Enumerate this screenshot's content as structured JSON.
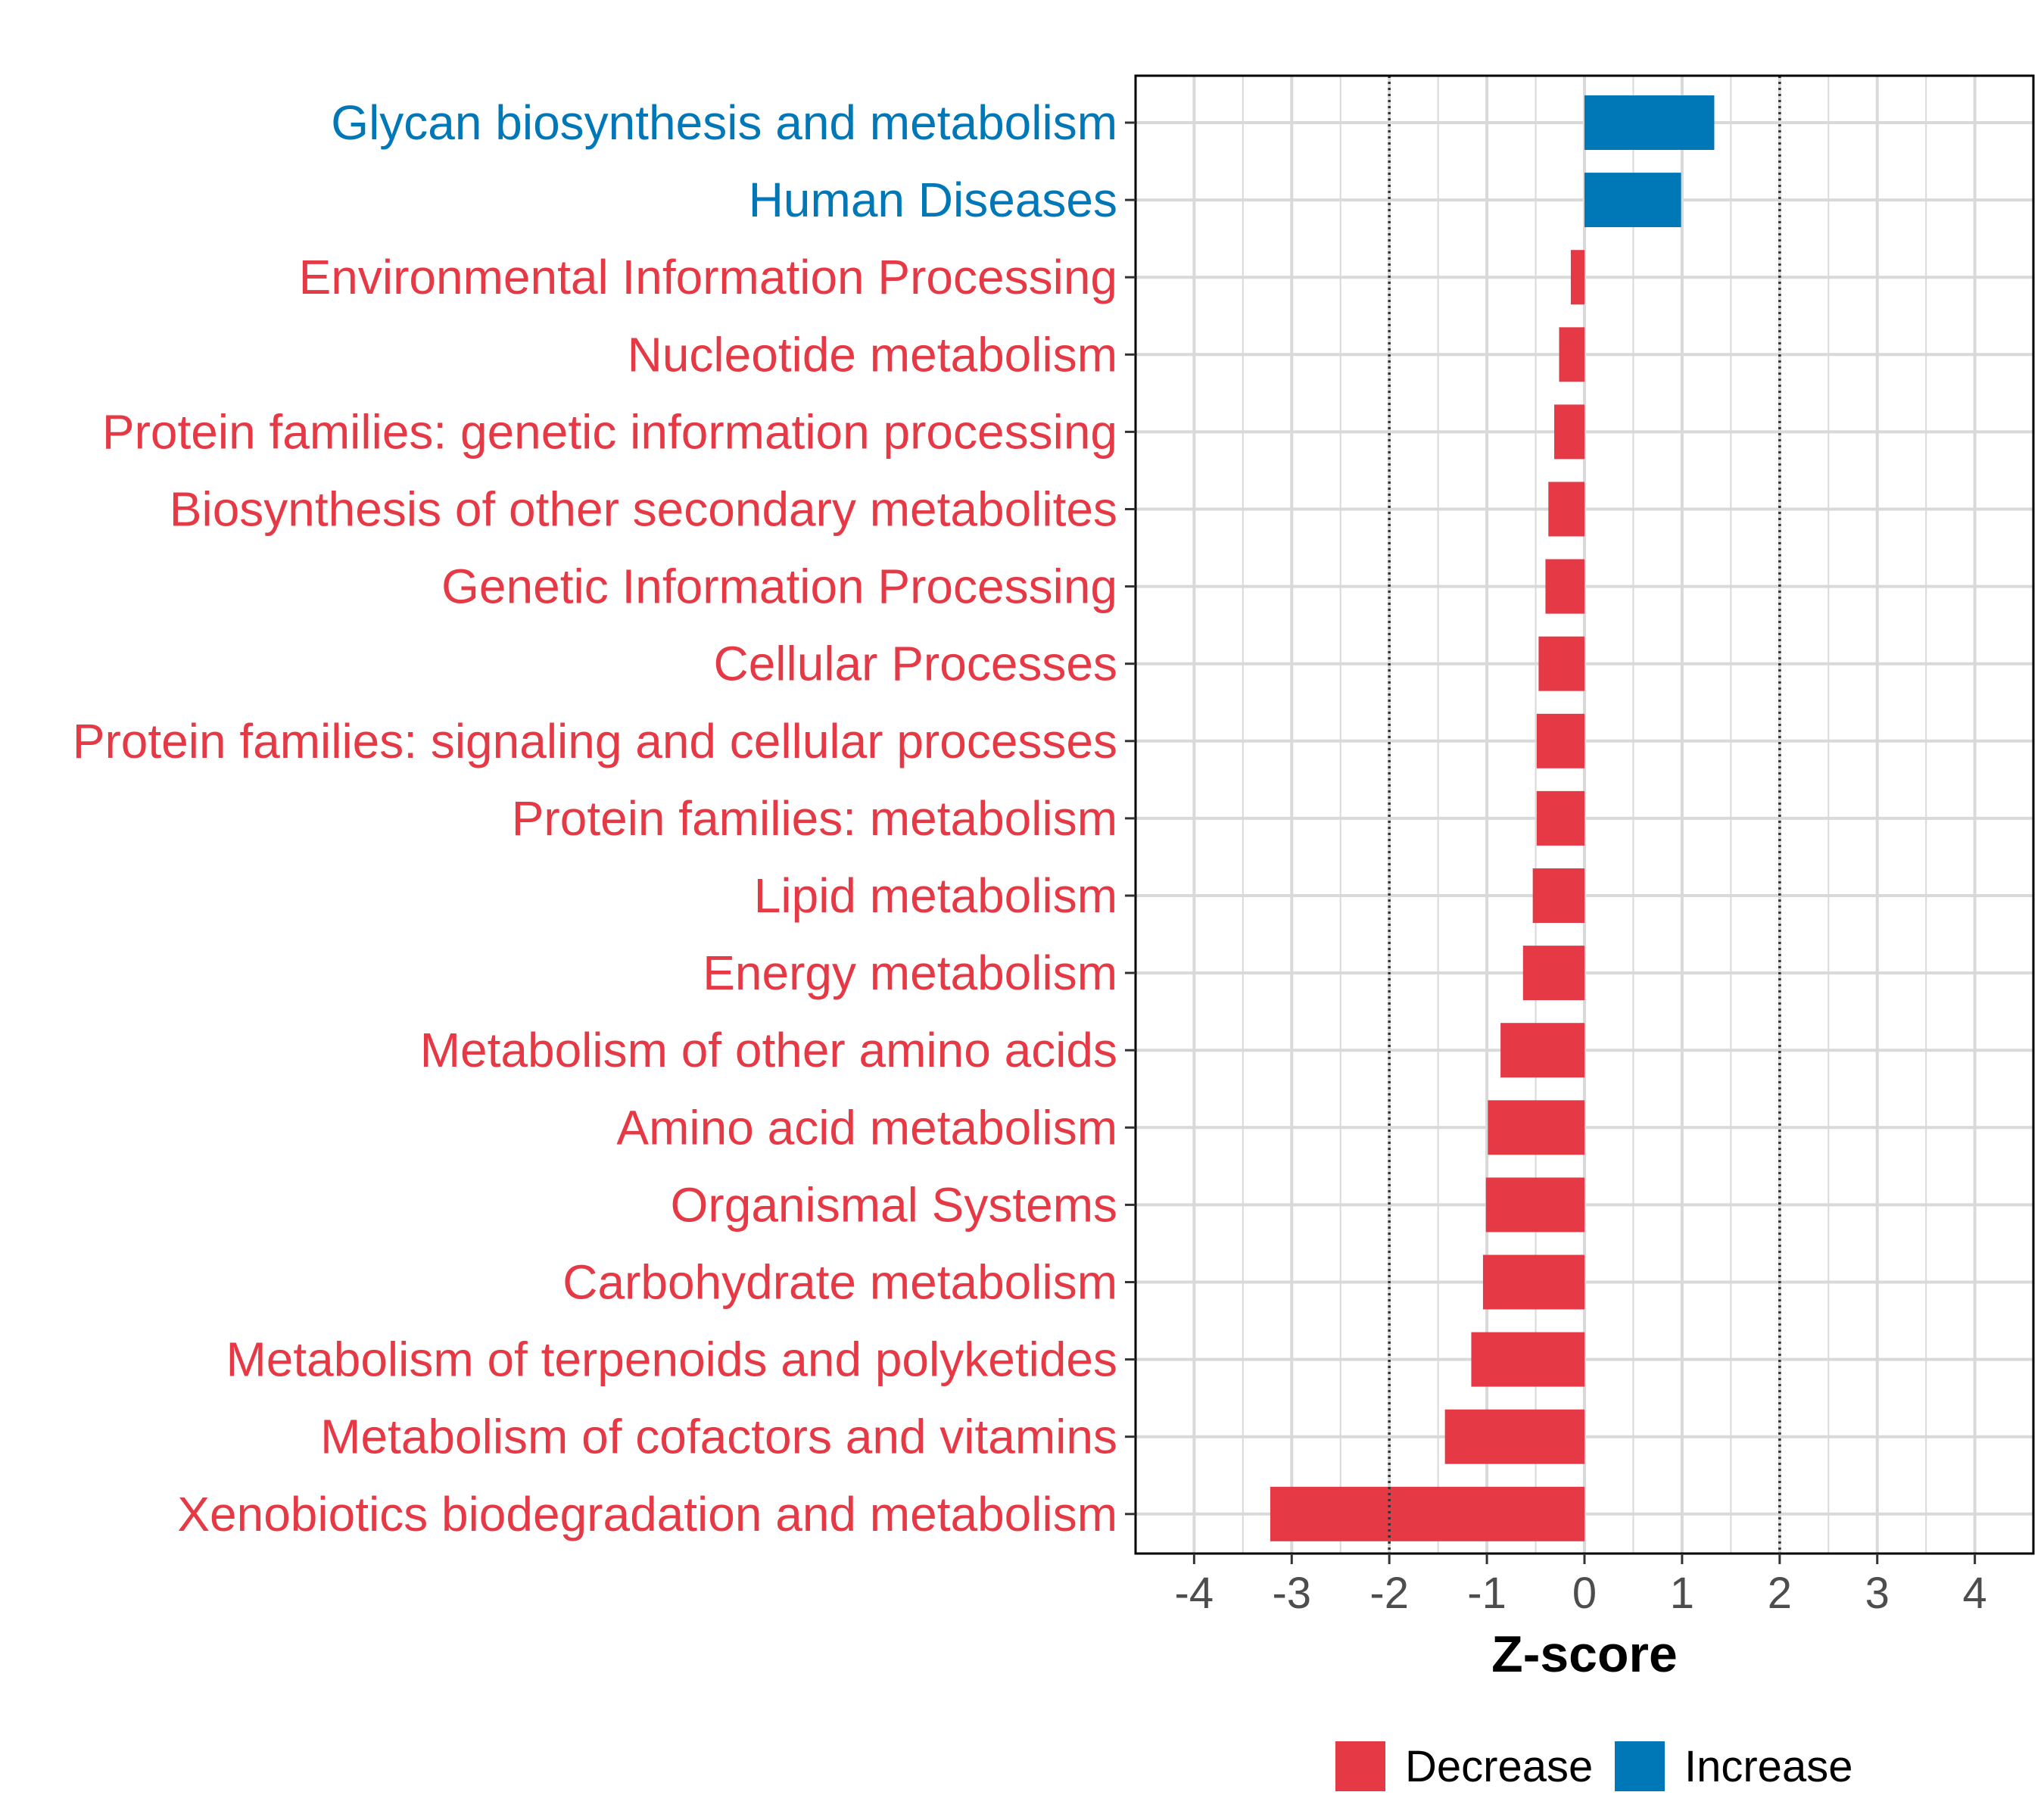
{
  "chart_data": {
    "type": "bar",
    "orientation": "horizontal",
    "title": "",
    "xlabel": "Z-score",
    "ylabel": "",
    "xlim": [
      -4.6,
      4.6
    ],
    "xticks": [
      -4,
      -3,
      -2,
      -1,
      0,
      1,
      2,
      3,
      4
    ],
    "reference_lines": [
      -2,
      2
    ],
    "grid": true,
    "legend_position": "bottom",
    "colors": {
      "Decrease": "#E63946",
      "Increase": "#0077B6"
    },
    "legend": [
      {
        "name": "Decrease",
        "color": "#E63946"
      },
      {
        "name": "Increase",
        "color": "#0077B6"
      }
    ],
    "categories": [
      "Glycan biosynthesis and metabolism",
      "Human Diseases",
      "Environmental Information Processing",
      "Nucleotide metabolism",
      "Protein families: genetic information processing",
      "Biosynthesis of other secondary metabolites",
      "Genetic Information Processing",
      "Cellular Processes",
      "Protein families: signaling and cellular processes",
      "Protein families: metabolism",
      "Lipid metabolism",
      "Energy metabolism",
      "Metabolism of other amino acids",
      "Amino acid metabolism",
      "Organismal Systems",
      "Carbohydrate metabolism",
      "Metabolism of terpenoids and polyketides",
      "Metabolism of cofactors and vitamins",
      "Xenobiotics biodegradation and metabolism"
    ],
    "values": [
      1.33,
      0.99,
      -0.14,
      -0.26,
      -0.31,
      -0.37,
      -0.4,
      -0.47,
      -0.49,
      -0.49,
      -0.53,
      -0.63,
      -0.86,
      -0.99,
      -1.01,
      -1.04,
      -1.16,
      -1.43,
      -3.22
    ],
    "groups": [
      "Increase",
      "Increase",
      "Decrease",
      "Decrease",
      "Decrease",
      "Decrease",
      "Decrease",
      "Decrease",
      "Decrease",
      "Decrease",
      "Decrease",
      "Decrease",
      "Decrease",
      "Decrease",
      "Decrease",
      "Decrease",
      "Decrease",
      "Decrease",
      "Decrease"
    ]
  }
}
